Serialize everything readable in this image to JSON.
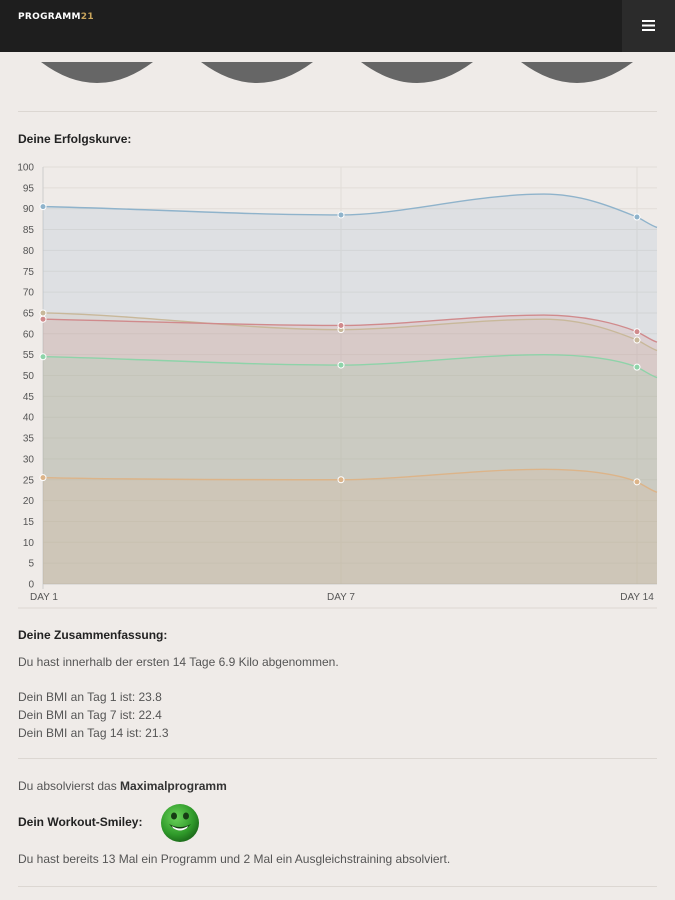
{
  "header": {
    "logo_main": "PROGRAMM",
    "logo_accent": "21",
    "menu_icon": "hamburger-menu-icon"
  },
  "chart_section": {
    "heading": "Deine Erfolgskurve:"
  },
  "chart_data": {
    "type": "area",
    "categories": [
      "DAY 1",
      "DAY 7",
      "DAY 14"
    ],
    "ylim": [
      0,
      100
    ],
    "yticks": [
      0,
      5,
      10,
      15,
      20,
      25,
      30,
      35,
      40,
      45,
      50,
      55,
      60,
      65,
      70,
      75,
      80,
      85,
      90,
      95,
      100
    ],
    "grid": true,
    "series": [
      {
        "values": [
          90.5,
          88.5,
          88
        ],
        "color": "#8fb3cb"
      },
      {
        "values": [
          65,
          61,
          58.5
        ],
        "color": "#c8b89a"
      },
      {
        "values": [
          63.5,
          62,
          60.5
        ],
        "color": "#d08a8c"
      },
      {
        "values": [
          54.5,
          52.5,
          52
        ],
        "color": "#8ed3a9"
      },
      {
        "values": [
          25.5,
          25,
          24.5
        ],
        "color": "#dcb489"
      }
    ]
  },
  "summary": {
    "heading": "Deine Zusammenfassung:",
    "weight_loss": "Du hast innerhalb der ersten 14 Tage 6.9 Kilo abgenommen.",
    "bmi_day1": "Dein BMI an Tag 1 ist: 23.8",
    "bmi_day7": "Dein BMI an Tag 7 ist: 22.4",
    "bmi_day14": "Dein BMI an Tag 14 ist: 21.3"
  },
  "program": {
    "prefix": "Du absolvierst das ",
    "name": "Maximalprogramm"
  },
  "workout": {
    "heading": "Dein Workout-Smiley:",
    "smiley_icon": "green-smiley-icon",
    "count_text": "Du hast bereits 13 Mal ein Programm und 2 Mal ein Ausgleichstraining absolviert."
  }
}
